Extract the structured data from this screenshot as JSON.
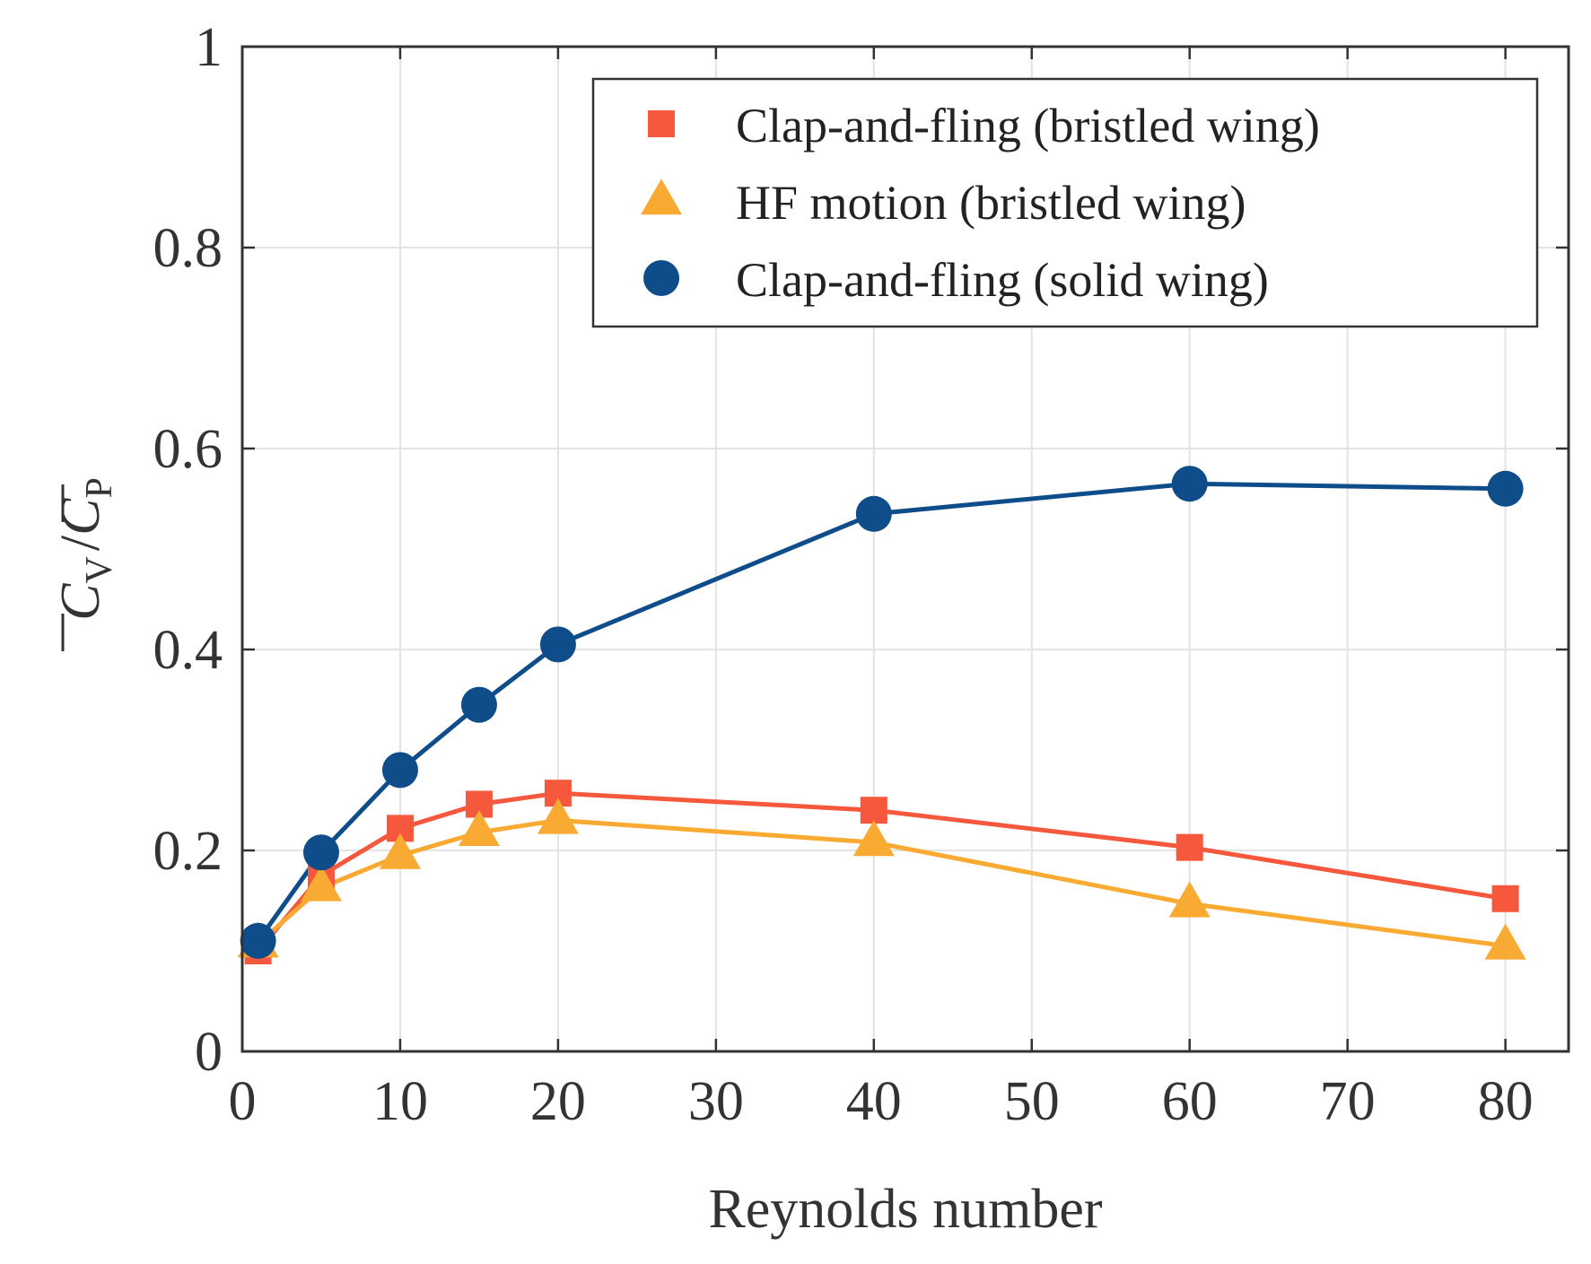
{
  "chart_data": {
    "type": "line",
    "xlabel": "Reynolds number",
    "ylabel": "C_V / C_P",
    "ylabel_parts": {
      "c1": "C",
      "sub1": "V",
      "slash": "/",
      "c2": "C",
      "sub2": "P"
    },
    "xlim": [
      0,
      84
    ],
    "ylim": [
      0,
      1
    ],
    "x_ticks": [
      0,
      10,
      20,
      30,
      40,
      50,
      60,
      70,
      80
    ],
    "x_tick_labels": [
      "0",
      "10",
      "20",
      "30",
      "40",
      "50",
      "60",
      "70",
      "80"
    ],
    "y_ticks": [
      0,
      0.2,
      0.4,
      0.6,
      0.8,
      1
    ],
    "y_tick_labels": [
      "0",
      "0.2",
      "0.4",
      "0.6",
      "0.8",
      "1"
    ],
    "grid": true,
    "legend_position": "top-right",
    "x": [
      1,
      5,
      10,
      15,
      20,
      40,
      60,
      80
    ],
    "series": [
      {
        "name": "Clap-and-fling (bristled wing)",
        "marker": "square",
        "color": "#f5583c",
        "values": [
          0.1,
          0.175,
          0.222,
          0.246,
          0.257,
          0.24,
          0.203,
          0.152
        ]
      },
      {
        "name": "HF motion (bristled wing)",
        "marker": "triangle",
        "color": "#f9aa33",
        "values": [
          0.107,
          0.163,
          0.195,
          0.218,
          0.23,
          0.208,
          0.147,
          0.105
        ]
      },
      {
        "name": "Clap-and-fling (solid wing)",
        "marker": "circle",
        "color": "#0f4c8a",
        "values": [
          0.11,
          0.198,
          0.28,
          0.345,
          0.405,
          0.535,
          0.565,
          0.56
        ]
      }
    ]
  }
}
